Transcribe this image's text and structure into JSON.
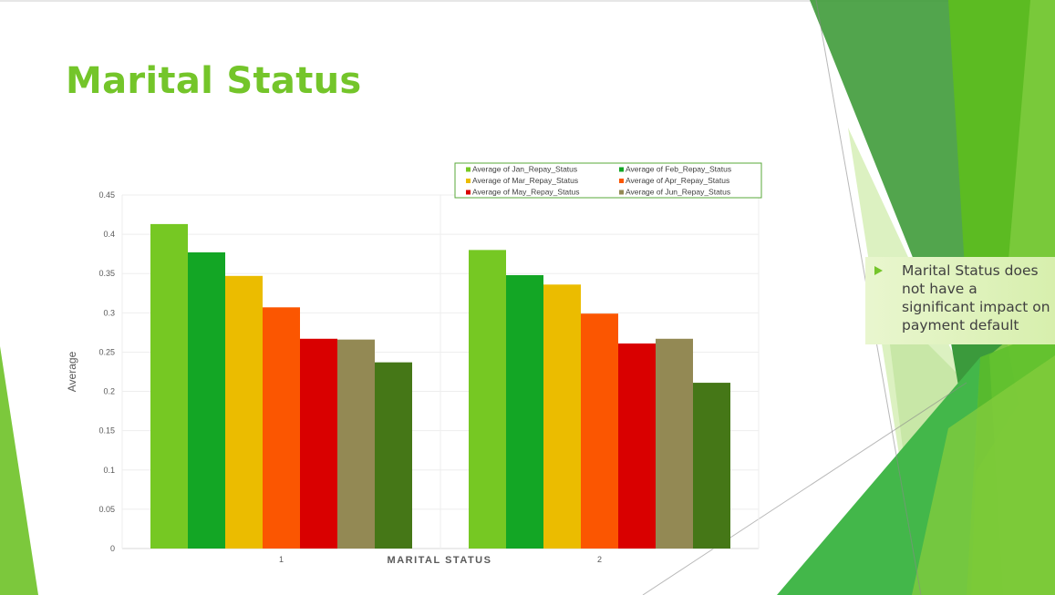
{
  "slide": {
    "title": "Marital Status",
    "callout_text": "Marital Status does not have a significant impact on payment default"
  },
  "chart_data": {
    "type": "bar",
    "title": "",
    "xlabel": "MARITAL STATUS",
    "ylabel": "Average",
    "categories": [
      "1",
      "2"
    ],
    "ylim": [
      0,
      0.45
    ],
    "yticks": [
      "0",
      "0.05",
      "0.1",
      "0.15",
      "0.2",
      "0.25",
      "0.3",
      "0.35",
      "0.4",
      "0.45"
    ],
    "grid": true,
    "legend_position": "top-right",
    "series": [
      {
        "name": "Average of Jan_Repay_Status",
        "color": "#76c823",
        "values": [
          0.413,
          0.38
        ]
      },
      {
        "name": "Average of Feb_Repay_Status",
        "color": "#13a625",
        "values": [
          0.377,
          0.348
        ]
      },
      {
        "name": "Average of Mar_Repay_Status",
        "color": "#ebbc00",
        "values": [
          0.347,
          0.336
        ]
      },
      {
        "name": "Average of Apr_Repay_Status",
        "color": "#fb5601",
        "values": [
          0.307,
          0.299
        ]
      },
      {
        "name": "Average of May_Repay_Status",
        "color": "#d90000",
        "values": [
          0.267,
          0.261
        ]
      },
      {
        "name": "Average of Jun_Repay_Status",
        "color": "#938954",
        "values": [
          0.266,
          0.267
        ]
      },
      {
        "name": "",
        "color": "#457717",
        "values": [
          0.237,
          0.211
        ]
      }
    ]
  }
}
